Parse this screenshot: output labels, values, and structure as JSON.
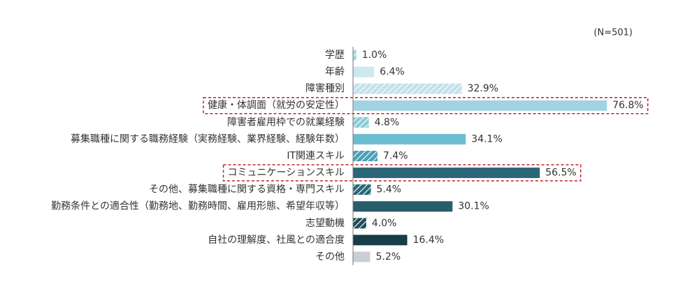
{
  "chart_data": {
    "type": "hbar",
    "annotation": "(N=501)",
    "categories": [
      "学歴",
      "年齢",
      "障害種別",
      "健康・体調面（就労の安定性）",
      "障害者雇用枠での就業経験",
      "募集職種に関する職務経験（実務経験、業界経験、経験年数）",
      "IT関連スキル",
      "コミュニケーションスキル",
      "その他、募集職種に関する資格・専門スキル",
      "勤務条件との適合性（勤務地、勤務時間、雇用形態、希望年収等）",
      "志望動機",
      "自社の理解度、社風との適合度",
      "その他"
    ],
    "values": [
      1.0,
      6.4,
      32.9,
      76.8,
      4.8,
      34.1,
      7.4,
      56.5,
      5.4,
      30.1,
      4.0,
      16.4,
      5.2
    ],
    "value_labels": [
      "1.0%",
      "6.4%",
      "32.9%",
      "76.8%",
      "4.8%",
      "34.1%",
      "7.4%",
      "56.5%",
      "5.4%",
      "30.1%",
      "4.0%",
      "16.4%",
      "5.2%"
    ],
    "colors": [
      "#9fd3e3",
      "#cde8ef",
      "#c2e1ea",
      "#a3d3e3",
      "#8ccbda",
      "#6dbdd1",
      "#4aa0b5",
      "#2b6779",
      "#2b6779",
      "#295d6c",
      "#1f4d5a",
      "#173d49",
      "#c9ced8"
    ],
    "hatched": [
      true,
      false,
      true,
      false,
      true,
      false,
      true,
      false,
      true,
      false,
      true,
      false,
      false
    ],
    "highlighted": [
      false,
      false,
      false,
      true,
      false,
      false,
      false,
      true,
      false,
      false,
      false,
      false,
      false
    ],
    "xlim": [
      0,
      100
    ]
  }
}
